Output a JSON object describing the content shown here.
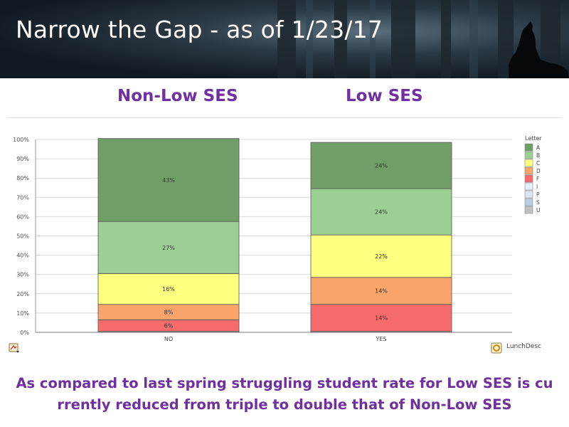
{
  "slide": {
    "title": "Narrow the Gap  - as of 1/23/17",
    "left_heading": "Non-Low SES",
    "right_heading": "Low SES",
    "caption_line1": "As compared to last spring struggling student rate for Low SES is cu",
    "caption_line2": "rrently reduced from triple to double that of Non-Low SES",
    "dimension_label": "LunchDesc",
    "icons": [
      "export-menu-icon",
      "refresh-icon",
      "wolf-silhouette-icon"
    ]
  },
  "chart_data": {
    "type": "bar",
    "stacked": true,
    "normalized": true,
    "categories": [
      "NO",
      "YES"
    ],
    "ylim": [
      0,
      100
    ],
    "yticks": [
      "0%",
      "10%",
      "20%",
      "30%",
      "40%",
      "50%",
      "60%",
      "70%",
      "80%",
      "90%",
      "100%"
    ],
    "legend_title": "Letter",
    "legend_position": "right",
    "grid": true,
    "series": [
      {
        "name": "U",
        "color": "#c0c0c0",
        "values": [
          0.5,
          0.5
        ]
      },
      {
        "name": "S",
        "color": "#b8cce4",
        "values": [
          0,
          0
        ]
      },
      {
        "name": "P",
        "color": "#dbe5f1",
        "values": [
          0,
          0
        ]
      },
      {
        "name": "I",
        "color": "#e4eef8",
        "values": [
          0,
          0
        ]
      },
      {
        "name": "F",
        "color": "#f66b6b",
        "values": [
          6,
          14
        ]
      },
      {
        "name": "D",
        "color": "#f9a46b",
        "values": [
          8,
          14
        ]
      },
      {
        "name": "C",
        "color": "#ffff80",
        "values": [
          16,
          22
        ]
      },
      {
        "name": "B",
        "color": "#9bcf93",
        "values": [
          27,
          24
        ]
      },
      {
        "name": "A",
        "color": "#6f9f67",
        "values": [
          43,
          24
        ]
      }
    ],
    "data_labels": [
      {
        "series": "F",
        "values": [
          "6%",
          "14%"
        ]
      },
      {
        "series": "D",
        "values": [
          "8%",
          "14%"
        ]
      },
      {
        "series": "C",
        "values": [
          "16%",
          "22%"
        ]
      },
      {
        "series": "B",
        "values": [
          "27%",
          "24%"
        ]
      },
      {
        "series": "A",
        "values": [
          "43%",
          "24%"
        ]
      }
    ],
    "legend_order": [
      "A",
      "B",
      "C",
      "D",
      "F",
      "I",
      "P",
      "S",
      "U"
    ]
  }
}
